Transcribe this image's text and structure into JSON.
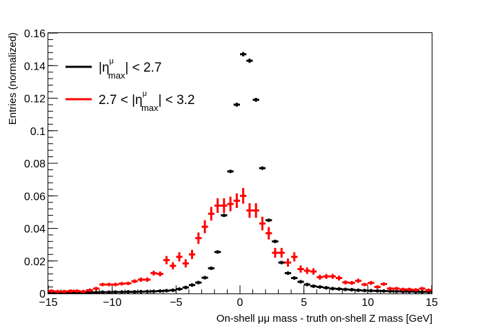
{
  "chart_data": {
    "type": "scatter",
    "xlabel": "On-shell μμ mass - truth on-shell Z mass [GeV]",
    "ylabel": "Entries (normalized)",
    "xlim": [
      -15,
      15
    ],
    "ylim": [
      0,
      0.16
    ],
    "x_ticks": [
      "−15",
      "−10",
      "−5",
      "0",
      "5",
      "10",
      "15"
    ],
    "y_ticks": [
      "0",
      "0.02",
      "0.04",
      "0.06",
      "0.08",
      "0.1",
      "0.12",
      "0.14",
      "0.16"
    ],
    "x_minor_step": 1,
    "y_minor_step": 0.004,
    "grid": false,
    "legend": {
      "placement": "top-left",
      "entries": [
        {
          "eta_prefix": "",
          "limit_text": " < 2.7",
          "color": "#000000"
        },
        {
          "eta_prefix": "2.7 < ",
          "limit_text": " < 3.2",
          "color": "#ff0000"
        }
      ],
      "eta_symbol": "η",
      "superscript": "μ",
      "subscript": "max"
    },
    "series": [
      {
        "color": "#000000",
        "bin_width": 0.5,
        "x": [
          -14.75,
          -14.25,
          -13.75,
          -13.25,
          -12.75,
          -12.25,
          -11.75,
          -11.25,
          -10.75,
          -10.25,
          -9.75,
          -9.25,
          -8.75,
          -8.25,
          -7.75,
          -7.25,
          -6.75,
          -6.25,
          -5.75,
          -5.25,
          -4.75,
          -4.25,
          -3.75,
          -3.25,
          -2.75,
          -2.25,
          -1.75,
          -1.25,
          -0.75,
          -0.25,
          0.25,
          0.75,
          1.25,
          1.75,
          2.25,
          2.75,
          3.25,
          3.75,
          4.25,
          4.75,
          5.25,
          5.75,
          6.25,
          6.75,
          7.25,
          7.75,
          8.25,
          8.75,
          9.25,
          9.75,
          10.25,
          10.75,
          11.25,
          11.75,
          12.25,
          12.75,
          13.25,
          13.75,
          14.25,
          14.75
        ],
        "y": [
          0.0005,
          0.0005,
          0.0005,
          0.0006,
          0.0006,
          0.0006,
          0.0007,
          0.0007,
          0.0008,
          0.0008,
          0.0009,
          0.0009,
          0.001,
          0.001,
          0.0011,
          0.0012,
          0.0013,
          0.0015,
          0.0017,
          0.002,
          0.0027,
          0.0037,
          0.0052,
          0.0067,
          0.0097,
          0.0155,
          0.0255,
          0.048,
          0.075,
          0.116,
          0.147,
          0.143,
          0.119,
          0.077,
          0.045,
          0.032,
          0.019,
          0.0125,
          0.0095,
          0.0072,
          0.0055,
          0.0045,
          0.004,
          0.0035,
          0.003,
          0.0028,
          0.0025,
          0.0023,
          0.002,
          0.0018,
          0.0017,
          0.0016,
          0.0015,
          0.0014,
          0.0013,
          0.0012,
          0.0012,
          0.0011,
          0.001,
          0.001
        ],
        "y_err": [
          0.0002,
          0.0002,
          0.0002,
          0.0002,
          0.0002,
          0.0002,
          0.0002,
          0.0002,
          0.0002,
          0.0002,
          0.0002,
          0.0002,
          0.0002,
          0.0002,
          0.0002,
          0.0002,
          0.0002,
          0.0002,
          0.0002,
          0.0002,
          0.0002,
          0.0003,
          0.0003,
          0.0003,
          0.0004,
          0.0005,
          0.0006,
          0.0008,
          0.001,
          0.0012,
          0.0013,
          0.0013,
          0.0012,
          0.001,
          0.0008,
          0.0006,
          0.0005,
          0.0004,
          0.0003,
          0.0003,
          0.0003,
          0.0002,
          0.0002,
          0.0002,
          0.0002,
          0.0002,
          0.0002,
          0.0002,
          0.0002,
          0.0002,
          0.0002,
          0.0002,
          0.0002,
          0.0002,
          0.0002,
          0.0002,
          0.0002,
          0.0002,
          0.0002,
          0.0002
        ]
      },
      {
        "color": "#ff0000",
        "bin_width": 0.5,
        "x": [
          -14.75,
          -14.25,
          -13.75,
          -13.25,
          -12.75,
          -12.25,
          -11.75,
          -11.25,
          -10.75,
          -10.25,
          -9.75,
          -9.25,
          -8.75,
          -8.25,
          -7.75,
          -7.25,
          -6.75,
          -6.25,
          -5.75,
          -5.25,
          -4.75,
          -4.25,
          -3.75,
          -3.25,
          -2.75,
          -2.25,
          -1.75,
          -1.25,
          -0.75,
          -0.25,
          0.25,
          0.75,
          1.25,
          1.75,
          2.25,
          2.75,
          3.25,
          3.75,
          4.25,
          4.75,
          5.25,
          5.75,
          6.25,
          6.75,
          7.25,
          7.75,
          8.25,
          8.75,
          9.25,
          9.75,
          10.25,
          10.75,
          11.25,
          11.75,
          12.25,
          12.75,
          13.25,
          13.75,
          14.25,
          14.75
        ],
        "y": [
          0.0015,
          0.0012,
          0.0012,
          0.0015,
          0.0015,
          0.0012,
          0.002,
          0.003,
          0.0055,
          0.0055,
          0.0055,
          0.006,
          0.0062,
          0.0075,
          0.0085,
          0.0085,
          0.0125,
          0.012,
          0.0205,
          0.017,
          0.0225,
          0.0185,
          0.024,
          0.034,
          0.041,
          0.049,
          0.054,
          0.054,
          0.055,
          0.057,
          0.06,
          0.051,
          0.051,
          0.043,
          0.037,
          0.025,
          0.025,
          0.019,
          0.0225,
          0.015,
          0.014,
          0.0135,
          0.01,
          0.0105,
          0.0105,
          0.0095,
          0.0068,
          0.0065,
          0.0078,
          0.0055,
          0.0065,
          0.004,
          0.0058,
          0.003,
          0.003,
          0.0025,
          0.0025,
          0.0022,
          0.003,
          0.002
        ],
        "y_err": [
          0.0005,
          0.0005,
          0.0005,
          0.0005,
          0.0005,
          0.0005,
          0.0006,
          0.0007,
          0.001,
          0.001,
          0.001,
          0.001,
          0.001,
          0.0012,
          0.0013,
          0.0013,
          0.0015,
          0.0015,
          0.0025,
          0.0022,
          0.0028,
          0.0025,
          0.0028,
          0.0035,
          0.004,
          0.0042,
          0.0045,
          0.0045,
          0.0045,
          0.0045,
          0.0048,
          0.0045,
          0.0045,
          0.0042,
          0.0038,
          0.003,
          0.003,
          0.0025,
          0.0028,
          0.0022,
          0.002,
          0.002,
          0.0015,
          0.0015,
          0.0015,
          0.0015,
          0.0012,
          0.0012,
          0.0013,
          0.001,
          0.0012,
          0.0008,
          0.001,
          0.0007,
          0.0007,
          0.0006,
          0.0006,
          0.0006,
          0.0007,
          0.0005
        ]
      }
    ]
  }
}
